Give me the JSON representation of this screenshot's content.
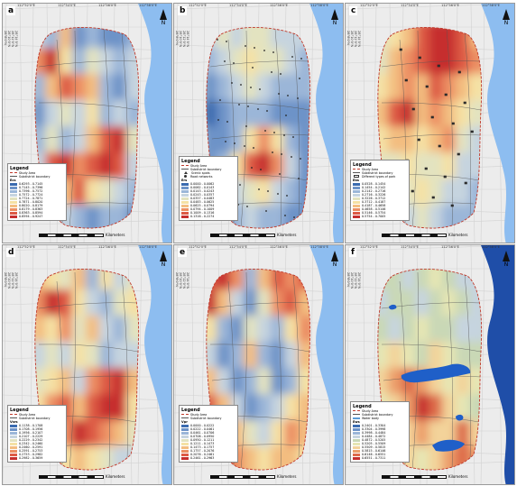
{
  "panels": [
    {
      "label": "a",
      "ticks_lon": [
        "112°52'0\"E",
        "112°54'0\"E",
        "112°56'0\"E",
        "112°58'0\"E"
      ],
      "ticks_lat": [
        "28°14'0\"N",
        "28°12'0\"N",
        "28°10'0\"N",
        "28°8'0\"N"
      ],
      "legend": {
        "title": "Legend",
        "items": [
          {
            "type": "dash",
            "label": "Study Area"
          },
          {
            "type": "solid",
            "label": "Subdistrict boundary"
          }
        ],
        "var_label": "Ecs",
        "classes": [
          "0.6293 - 0.7145",
          "0.7145 - 0.7396",
          "0.7396 - 0.7572",
          "0.7572 - 0.7724",
          "0.7724 - 0.7871",
          "0.7871 - 0.8020",
          "0.8020 - 0.8179",
          "0.8179 - 0.8363",
          "0.8363 - 0.8594",
          "0.8594 - 0.9247"
        ]
      },
      "palette": [
        "#3a6bb0",
        "#6d93c8",
        "#9bb6d8",
        "#c6d4df",
        "#e3e3c0",
        "#f5e1a4",
        "#f3bd80",
        "#ec8f63",
        "#dd5a45",
        "#c62e2e"
      ],
      "field": [
        [
          3,
          2,
          6,
          1,
          2,
          1,
          1,
          2
        ],
        [
          7,
          9,
          5,
          2,
          4,
          3,
          2,
          3
        ],
        [
          2,
          6,
          8,
          7,
          6,
          2,
          1,
          3
        ],
        [
          1,
          3,
          4,
          3,
          5,
          2,
          3,
          2
        ],
        [
          2,
          4,
          2,
          3,
          6,
          8,
          9,
          4
        ],
        [
          3,
          8,
          9,
          7,
          8,
          9,
          8,
          3
        ],
        [
          2,
          3,
          6,
          8,
          5,
          4,
          3,
          2
        ],
        [
          1,
          2,
          3,
          2,
          1,
          2,
          2,
          1
        ]
      ],
      "scale_unit": "Kilometers"
    },
    {
      "label": "b",
      "ticks_lon": [
        "112°52'0\"E",
        "112°54'0\"E",
        "112°56'0\"E",
        "112°58'0\"E"
      ],
      "ticks_lat": [
        "28°14'0\"N",
        "28°12'0\"N",
        "28°10'0\"N",
        "28°8'0\"N"
      ],
      "legend": {
        "title": "Legend",
        "items": [
          {
            "type": "dash",
            "label": "Study Area"
          },
          {
            "type": "solid",
            "label": "Subdistrict boundary"
          },
          {
            "type": "tri",
            "label": "Scenic spots"
          },
          {
            "type": "dot",
            "label": "Road networks"
          }
        ],
        "var_label": "Ers",
        "classes": [
          "0.0000 - 0.0062",
          "0.0062 - 0.0143",
          "0.0143 - 0.0243",
          "0.0243 - 0.0357",
          "0.0357 - 0.0483",
          "0.0483 - 0.0625",
          "0.0625 - 0.0794",
          "0.0794 - 0.1009",
          "0.1009 - 0.1316",
          "0.1316 - 0.2274"
        ]
      },
      "palette": [
        "#3a6bb0",
        "#6d93c8",
        "#9bb6d8",
        "#c6d4df",
        "#e3e3c0",
        "#f5e1a4",
        "#f3bd80",
        "#ec8f63",
        "#dd5a45",
        "#c62e2e"
      ],
      "field": [
        [
          3,
          4,
          3,
          4,
          4,
          3,
          3,
          3
        ],
        [
          2,
          3,
          4,
          5,
          4,
          4,
          3,
          2
        ],
        [
          1,
          2,
          3,
          4,
          3,
          2,
          2,
          2
        ],
        [
          0,
          1,
          2,
          2,
          2,
          1,
          1,
          1
        ],
        [
          1,
          1,
          2,
          5,
          7,
          5,
          2,
          1
        ],
        [
          1,
          2,
          5,
          8,
          9,
          7,
          3,
          1
        ],
        [
          1,
          1,
          3,
          4,
          5,
          3,
          2,
          1
        ],
        [
          1,
          1,
          2,
          3,
          2,
          2,
          1,
          1
        ]
      ],
      "scale_unit": "Kilometers"
    },
    {
      "label": "c",
      "ticks_lon": [
        "112°52'0\"E",
        "112°54'0\"E",
        "112°56'0\"E",
        "112°58'0\"E"
      ],
      "ticks_lat": [
        "28°14'0\"N",
        "28°12'0\"N",
        "28°10'0\"N",
        "28°8'0\"N"
      ],
      "legend": {
        "title": "Legend",
        "items": [
          {
            "type": "dash",
            "label": "Study Area"
          },
          {
            "type": "solid",
            "label": "Subdistrict boundary"
          },
          {
            "type": "bld",
            "label": "Different types of park"
          }
        ],
        "var_label": "Ebs",
        "classes": [
          "0.0528 - 0.1454",
          "0.1454 - 0.2142",
          "0.2142 - 0.2716",
          "0.2716 - 0.3226",
          "0.3226 - 0.3712",
          "0.3712 - 0.4187",
          "0.4187 - 0.4658",
          "0.4658 - 0.5146",
          "0.5146 - 0.5754",
          "0.5754 - 0.7005"
        ]
      },
      "palette": [
        "#3a6bb0",
        "#6d93c8",
        "#9bb6d8",
        "#c6d4df",
        "#e3e3c0",
        "#f5e1a4",
        "#f3bd80",
        "#ec8f63",
        "#dd5a45",
        "#c62e2e"
      ],
      "field": [
        [
          4,
          5,
          6,
          8,
          9,
          9,
          8,
          6
        ],
        [
          4,
          6,
          7,
          8,
          9,
          9,
          8,
          7
        ],
        [
          5,
          6,
          7,
          6,
          8,
          7,
          6,
          5
        ],
        [
          6,
          8,
          9,
          6,
          7,
          6,
          5,
          4
        ],
        [
          5,
          6,
          6,
          5,
          6,
          7,
          4,
          3
        ],
        [
          4,
          4,
          5,
          4,
          4,
          5,
          3,
          3
        ],
        [
          3,
          4,
          4,
          5,
          4,
          3,
          3,
          2
        ],
        [
          2,
          3,
          3,
          4,
          3,
          2,
          2,
          2
        ]
      ],
      "scale_unit": "Kilometers"
    },
    {
      "label": "d",
      "ticks_lon": [
        "112°52'0\"E",
        "112°54'0\"E",
        "112°56'0\"E",
        "112°58'0\"E"
      ],
      "ticks_lat": [
        "28°14'0\"N",
        "28°12'0\"N",
        "28°10'0\"N",
        "28°8'0\"N"
      ],
      "legend": {
        "title": "Legend",
        "items": [
          {
            "type": "dash",
            "label": "Study Area"
          },
          {
            "type": "solid",
            "label": "Subdistrict boundary"
          }
        ],
        "var_label": "Vsrs",
        "classes": [
          "0.1138 - 0.1708",
          "0.1708 - 0.1956",
          "0.1956 - 0.2107",
          "0.2107 - 0.2229",
          "0.2229 - 0.2342",
          "0.2342 - 0.2460",
          "0.2460 - 0.2591",
          "0.2591 - 0.2753",
          "0.2753 - 0.2982",
          "0.2982 - 0.3659"
        ]
      },
      "palette": [
        "#3a6bb0",
        "#6d93c8",
        "#9bb6d8",
        "#c6d4df",
        "#e3e3c0",
        "#f5e1a4",
        "#f3bd80",
        "#ec8f63",
        "#dd5a45",
        "#c62e2e"
      ],
      "field": [
        [
          6,
          5,
          4,
          6,
          2,
          5,
          3,
          4
        ],
        [
          7,
          9,
          8,
          5,
          3,
          2,
          4,
          5
        ],
        [
          6,
          5,
          7,
          4,
          6,
          3,
          2,
          4
        ],
        [
          3,
          4,
          3,
          5,
          4,
          2,
          3,
          3
        ],
        [
          4,
          5,
          6,
          3,
          7,
          8,
          9,
          6
        ],
        [
          5,
          7,
          8,
          6,
          8,
          9,
          9,
          5
        ],
        [
          4,
          6,
          7,
          9,
          8,
          7,
          6,
          4
        ],
        [
          3,
          4,
          5,
          6,
          5,
          4,
          3,
          3
        ]
      ],
      "scale_unit": "Kilometers"
    },
    {
      "label": "e",
      "ticks_lon": [
        "112°52'0\"E",
        "112°54'0\"E",
        "112°56'0\"E",
        "112°58'0\"E"
      ],
      "ticks_lat": [
        "28°14'0\"N",
        "28°12'0\"N",
        "28°10'0\"N",
        "28°8'0\"N"
      ],
      "legend": {
        "title": "Legend",
        "items": [
          {
            "type": "dash",
            "label": "Study Area"
          },
          {
            "type": "solid",
            "label": "Subdistrict boundary"
          }
        ],
        "var_label": "Vpr",
        "classes": [
          "0.0000 - 0.0222",
          "0.0222 - 0.0461",
          "0.0461 - 0.0706",
          "0.0706 - 0.0950",
          "0.0950 - 0.1211",
          "0.1211 - 0.1473",
          "0.1473 - 0.1757",
          "0.1757 - 0.2076",
          "0.2076 - 0.2461",
          "0.2461 - 0.2963"
        ]
      },
      "palette": [
        "#3a6bb0",
        "#6d93c8",
        "#9bb6d8",
        "#c6d4df",
        "#e3e3c0",
        "#f5e1a4",
        "#f3bd80",
        "#ec8f63",
        "#dd5a45",
        "#c62e2e"
      ],
      "field": [
        [
          8,
          9,
          7,
          2,
          6,
          8,
          7,
          8
        ],
        [
          9,
          6,
          3,
          1,
          4,
          7,
          8,
          6
        ],
        [
          5,
          2,
          1,
          4,
          3,
          2,
          5,
          7
        ],
        [
          3,
          1,
          2,
          6,
          2,
          1,
          3,
          6
        ],
        [
          6,
          3,
          1,
          2,
          4,
          1,
          2,
          5
        ],
        [
          8,
          6,
          3,
          1,
          2,
          3,
          5,
          6
        ],
        [
          9,
          8,
          6,
          4,
          3,
          5,
          7,
          6
        ],
        [
          7,
          8,
          7,
          6,
          5,
          6,
          6,
          5
        ]
      ],
      "scale_unit": "Kilometers"
    },
    {
      "label": "f",
      "ticks_lon": [
        "112°52'0\"E",
        "112°54'0\"E",
        "112°56'0\"E",
        "112°58'0\"E"
      ],
      "ticks_lat": [
        "28°14'0\"N",
        "28°12'0\"N",
        "28°10'0\"N",
        "28°8'0\"N"
      ],
      "legend": {
        "title": "Legend",
        "items": [
          {
            "type": "dash",
            "label": "Study Area"
          },
          {
            "type": "solid",
            "label": "Subdistrict boundary"
          },
          {
            "type": "blue",
            "label": "Water body"
          }
        ],
        "var_label": "Ews",
        "classes": [
          "0.2401 - 0.3304",
          "0.3304 - 0.3998",
          "0.3998 - 0.4484",
          "0.4484 - 0.4872",
          "0.4872 - 0.5205",
          "0.5205 - 0.5509",
          "0.5509 - 0.5815",
          "0.5815 - 0.6146",
          "0.6146 - 0.6551",
          "0.6551 - 0.7311"
        ]
      },
      "palette": [
        "#3a6bb0",
        "#6d93c8",
        "#9bb6d8",
        "#c6d4df",
        "#c9d8b6",
        "#e6e6b4",
        "#f3d39a",
        "#ec9e6b",
        "#dd6a4a",
        "#c62e2e"
      ],
      "field": [
        [
          4,
          4,
          3,
          4,
          5,
          4,
          3,
          3
        ],
        [
          3,
          4,
          4,
          3,
          4,
          5,
          4,
          3
        ],
        [
          4,
          3,
          4,
          5,
          4,
          4,
          3,
          3
        ],
        [
          5,
          6,
          5,
          4,
          6,
          5,
          4,
          4
        ],
        [
          6,
          7,
          8,
          7,
          6,
          5,
          6,
          5
        ],
        [
          5,
          6,
          7,
          9,
          8,
          6,
          5,
          4
        ],
        [
          4,
          5,
          6,
          7,
          6,
          6,
          8,
          6
        ],
        [
          4,
          5,
          6,
          5,
          6,
          7,
          8,
          7
        ]
      ],
      "scale_unit": "Kilometers"
    }
  ]
}
